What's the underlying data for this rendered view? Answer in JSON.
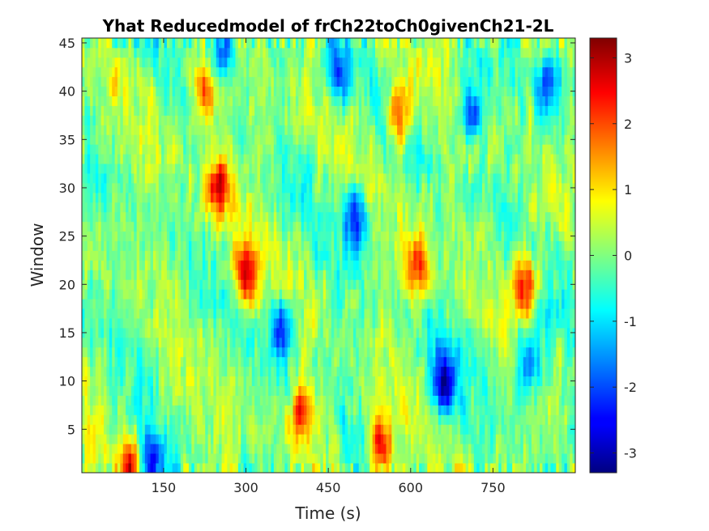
{
  "chart_data": {
    "type": "heatmap",
    "title": "Yhat Reducedmodel of frCh22toCh0givenCh21-2L",
    "xlabel": "Time (s)",
    "ylabel": "Window",
    "xlim": [
      1,
      900
    ],
    "ylim": [
      0.5,
      45.5
    ],
    "x_ticks": [
      150,
      300,
      450,
      600,
      750
    ],
    "y_ticks": [
      5,
      10,
      15,
      20,
      25,
      30,
      35,
      40,
      45
    ],
    "colorbar": {
      "limits": [
        -3.3,
        3.3
      ],
      "ticks": [
        -3,
        -2,
        -1,
        0,
        1,
        2,
        3
      ],
      "colormap": "jet"
    },
    "rows": 45,
    "columns": 180,
    "value_range": [
      -3.3,
      3.3
    ],
    "features": [
      {
        "t": 250,
        "w": 30,
        "v": 2.6
      },
      {
        "t": 300,
        "w": 21,
        "v": 2.8
      },
      {
        "t": 500,
        "w": 27,
        "v": -2.6
      },
      {
        "t": 365,
        "w": 15,
        "v": -2.5
      },
      {
        "t": 660,
        "w": 10,
        "v": -2.8
      },
      {
        "t": 545,
        "w": 3,
        "v": 2.8
      },
      {
        "t": 125,
        "w": 1,
        "v": -3.0
      },
      {
        "t": 95,
        "w": 1,
        "v": 2.6
      },
      {
        "t": 610,
        "w": 22,
        "v": 2.3
      },
      {
        "t": 810,
        "w": 20,
        "v": 2.5
      },
      {
        "t": 850,
        "w": 41,
        "v": -2.3
      },
      {
        "t": 580,
        "w": 38,
        "v": 2.2
      },
      {
        "t": 225,
        "w": 40,
        "v": 2.2
      },
      {
        "t": 255,
        "w": 44,
        "v": -2.4
      },
      {
        "t": 405,
        "w": 7,
        "v": 2.2
      },
      {
        "t": 710,
        "w": 38,
        "v": -2.2
      },
      {
        "t": 470,
        "w": 42,
        "v": -2.0
      },
      {
        "t": 815,
        "w": 12,
        "v": -2.0
      }
    ]
  }
}
